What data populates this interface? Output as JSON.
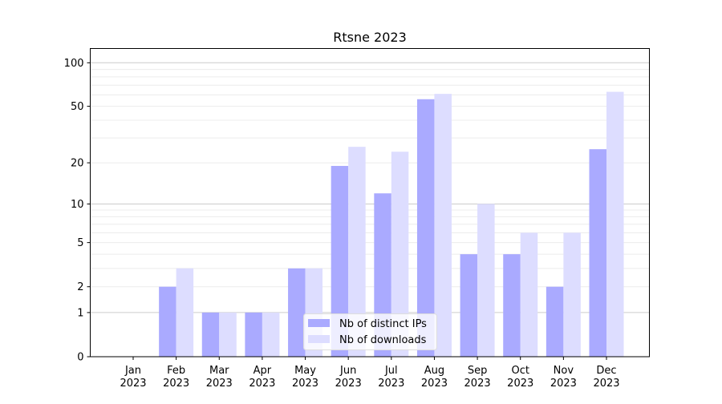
{
  "chart_data": {
    "type": "bar",
    "title": "Rtsne 2023",
    "xlabel": "",
    "ylabel": "",
    "yscale": "log10(1+y)",
    "ylim": [
      0,
      120
    ],
    "yticks": [
      0,
      1,
      2,
      5,
      10,
      20,
      50,
      100
    ],
    "grid": true,
    "legend_placement": "bottom-center",
    "categories": [
      "Jan\n2023",
      "Feb\n2023",
      "Mar\n2023",
      "Apr\n2023",
      "May\n2023",
      "Jun\n2023",
      "Jul\n2023",
      "Aug\n2023",
      "Sep\n2023",
      "Oct\n2023",
      "Nov\n2023",
      "Dec\n2023"
    ],
    "series": [
      {
        "name": "Nb of distinct IPs",
        "color": "#aaaaff",
        "values": [
          0,
          2,
          1,
          1,
          3,
          19,
          12,
          56,
          4,
          4,
          2,
          25
        ]
      },
      {
        "name": "Nb of downloads",
        "color": "#ddddff",
        "values": [
          0,
          3,
          1,
          1,
          3,
          26,
          24,
          61,
          10,
          6,
          6,
          63
        ]
      }
    ]
  }
}
